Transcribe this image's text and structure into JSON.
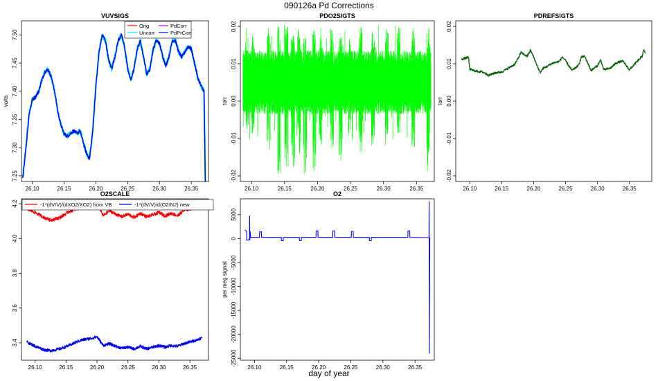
{
  "figure": {
    "title": "090126a   Pd Corrections",
    "xlabel": "day of year"
  },
  "chart_data": [
    {
      "id": "vuvsigs",
      "type": "line",
      "title": "VUVSIGS",
      "xlabel": "",
      "ylabel": "volts",
      "xlim": [
        26.083,
        26.377
      ],
      "ylim": [
        7.24,
        7.525
      ],
      "xticks": [
        26.1,
        26.15,
        26.2,
        26.25,
        26.3,
        26.35
      ],
      "xtick_labels": [
        "26.10",
        "26.15",
        "26.20",
        "26.25",
        "26.30",
        "26.35"
      ],
      "yticks": [
        7.25,
        7.3,
        7.35,
        7.4,
        7.45,
        7.5
      ],
      "ytick_labels": [
        "7.25",
        "7.30",
        "7.35",
        "7.40",
        "7.45",
        "7.50"
      ],
      "legend": {
        "position": "top-right",
        "entries": [
          {
            "label": "Orig",
            "color": "#ff0000"
          },
          {
            "label": "PdCorr",
            "color": "#cc00cc"
          },
          {
            "label": "Uncorr",
            "color": "#00e5ee"
          },
          {
            "label": "PdPrCorr",
            "color": "#0000ff"
          }
        ]
      },
      "series": [
        {
          "name": "Uncorr",
          "color": "#00e5ee",
          "width": 2.2,
          "noise": 0.004,
          "x": [
            26.085,
            26.09,
            26.095,
            26.1,
            26.105,
            26.11,
            26.115,
            26.12,
            26.125,
            26.13,
            26.135,
            26.14,
            26.145,
            26.15,
            26.155,
            26.16,
            26.165,
            26.17,
            26.175,
            26.18,
            26.185,
            26.19,
            26.195,
            26.2,
            26.205,
            26.21,
            26.215,
            26.22,
            26.225,
            26.23,
            26.235,
            26.24,
            26.245,
            26.25,
            26.255,
            26.26,
            26.265,
            26.27,
            26.275,
            26.28,
            26.285,
            26.29,
            26.295,
            26.3,
            26.305,
            26.31,
            26.315,
            26.32,
            26.325,
            26.33,
            26.335,
            26.34,
            26.345,
            26.35,
            26.355,
            26.36,
            26.365,
            26.37,
            26.372
          ],
          "y": [
            7.245,
            7.3,
            7.36,
            7.385,
            7.39,
            7.4,
            7.42,
            7.435,
            7.438,
            7.425,
            7.4,
            7.365,
            7.34,
            7.325,
            7.32,
            7.325,
            7.33,
            7.325,
            7.33,
            7.31,
            7.29,
            7.28,
            7.33,
            7.41,
            7.47,
            7.5,
            7.49,
            7.455,
            7.44,
            7.462,
            7.49,
            7.5,
            7.48,
            7.44,
            7.42,
            7.44,
            7.475,
            7.49,
            7.46,
            7.43,
            7.44,
            7.475,
            7.49,
            7.485,
            7.462,
            7.445,
            7.462,
            7.49,
            7.49,
            7.47,
            7.46,
            7.47,
            7.48,
            7.475,
            7.45,
            7.425,
            7.41,
            7.4,
            7.24
          ]
        },
        {
          "name": "PdPrCorr",
          "color": "#0000ff",
          "width": 1.4,
          "noise": 0.003,
          "x": [
            26.085,
            26.09,
            26.095,
            26.1,
            26.105,
            26.11,
            26.115,
            26.12,
            26.125,
            26.13,
            26.135,
            26.14,
            26.145,
            26.15,
            26.155,
            26.16,
            26.165,
            26.17,
            26.175,
            26.18,
            26.185,
            26.19,
            26.195,
            26.2,
            26.205,
            26.21,
            26.215,
            26.22,
            26.225,
            26.23,
            26.235,
            26.24,
            26.245,
            26.25,
            26.255,
            26.26,
            26.265,
            26.27,
            26.275,
            26.28,
            26.285,
            26.29,
            26.295,
            26.3,
            26.305,
            26.31,
            26.315,
            26.32,
            26.325,
            26.33,
            26.335,
            26.34,
            26.345,
            26.35,
            26.355,
            26.36,
            26.365,
            26.37,
            26.372
          ],
          "y": [
            7.245,
            7.3,
            7.36,
            7.385,
            7.39,
            7.4,
            7.42,
            7.435,
            7.438,
            7.425,
            7.4,
            7.365,
            7.34,
            7.325,
            7.32,
            7.325,
            7.33,
            7.325,
            7.33,
            7.31,
            7.29,
            7.28,
            7.33,
            7.41,
            7.47,
            7.5,
            7.49,
            7.455,
            7.44,
            7.462,
            7.49,
            7.5,
            7.48,
            7.44,
            7.42,
            7.44,
            7.475,
            7.49,
            7.46,
            7.43,
            7.44,
            7.475,
            7.49,
            7.485,
            7.462,
            7.445,
            7.462,
            7.49,
            7.49,
            7.47,
            7.46,
            7.47,
            7.48,
            7.475,
            7.45,
            7.425,
            7.41,
            7.4,
            7.24
          ]
        }
      ]
    },
    {
      "id": "pdo2sigts",
      "type": "line",
      "title": "PDO2SIGTS",
      "xlabel": "",
      "ylabel": "torr",
      "xlim": [
        26.083,
        26.377
      ],
      "ylim": [
        -0.0215,
        0.0215
      ],
      "xticks": [
        26.1,
        26.15,
        26.2,
        26.25,
        26.3,
        26.35
      ],
      "xtick_labels": [
        "26.10",
        "26.15",
        "26.20",
        "26.25",
        "26.30",
        "26.35"
      ],
      "yticks": [
        -0.02,
        -0.01,
        0.0,
        0.01,
        0.02
      ],
      "ytick_labels": [
        "-0.02",
        "-0.01",
        "0.00",
        "0.01",
        "0.02"
      ],
      "series": [
        {
          "name": "PDO2SIG",
          "color": "#00ff00",
          "center": 0.005,
          "half_range": 0.0085,
          "spikes": [
            {
              "x": 26.093,
              "hi": 0.02,
              "lo": -0.008
            },
            {
              "x": 26.102,
              "hi": 0.018,
              "lo": -0.009
            },
            {
              "x": 26.126,
              "hi": 0.02,
              "lo": -0.014
            },
            {
              "x": 26.142,
              "hi": 0.02,
              "lo": -0.021
            },
            {
              "x": 26.153,
              "hi": 0.02,
              "lo": -0.019
            },
            {
              "x": 26.163,
              "hi": 0.02,
              "lo": -0.018
            },
            {
              "x": 26.172,
              "hi": 0.02,
              "lo": -0.015
            },
            {
              "x": 26.181,
              "hi": 0.02,
              "lo": -0.02
            },
            {
              "x": 26.195,
              "hi": 0.019,
              "lo": -0.019
            },
            {
              "x": 26.205,
              "hi": 0.02,
              "lo": -0.012
            },
            {
              "x": 26.222,
              "hi": 0.02,
              "lo": -0.013
            },
            {
              "x": 26.235,
              "hi": 0.02,
              "lo": -0.016
            },
            {
              "x": 26.25,
              "hi": 0.017,
              "lo": -0.01
            },
            {
              "x": 26.265,
              "hi": 0.02,
              "lo": -0.014
            },
            {
              "x": 26.284,
              "hi": 0.019,
              "lo": -0.012
            },
            {
              "x": 26.305,
              "hi": 0.02,
              "lo": -0.013
            },
            {
              "x": 26.323,
              "hi": 0.02,
              "lo": -0.009
            },
            {
              "x": 26.345,
              "hi": 0.02,
              "lo": -0.013
            },
            {
              "x": 26.368,
              "hi": 0.02,
              "lo": -0.02
            }
          ]
        }
      ]
    },
    {
      "id": "pdrefsigts",
      "type": "line",
      "title": "PDREFSIGTS",
      "xlabel": "",
      "ylabel": "torr",
      "xlim": [
        26.078,
        26.385
      ],
      "ylim": [
        -0.0215,
        0.0215
      ],
      "xticks": [
        26.1,
        26.15,
        26.2,
        26.25,
        26.3,
        26.35
      ],
      "xtick_labels": [
        "26.10",
        "26.15",
        "26.20",
        "26.25",
        "26.30",
        "26.35"
      ],
      "yticks": [
        -0.02,
        -0.01,
        0.0,
        0.01,
        0.02
      ],
      "ytick_labels": [
        "-0.02",
        "-0.01",
        "0.00",
        "0.01",
        "0.02"
      ],
      "series": [
        {
          "name": "PDREFSIG",
          "color": "#006400",
          "width": 1.3,
          "noise": 0.0003,
          "x": [
            26.087,
            26.095,
            26.098,
            26.1,
            26.11,
            26.12,
            26.13,
            26.14,
            26.15,
            26.16,
            26.17,
            26.175,
            26.18,
            26.19,
            26.195,
            26.2,
            26.21,
            26.215,
            26.22,
            26.23,
            26.24,
            26.245,
            26.25,
            26.26,
            26.27,
            26.275,
            26.28,
            26.29,
            26.3,
            26.305,
            26.31,
            26.32,
            26.33,
            26.34,
            26.35,
            26.36,
            26.37,
            26.372,
            26.375
          ],
          "y": [
            0.0112,
            0.0116,
            0.0118,
            0.0085,
            0.008,
            0.0078,
            0.0069,
            0.0076,
            0.0078,
            0.0088,
            0.0098,
            0.0112,
            0.013,
            0.012,
            0.0136,
            0.0118,
            0.0076,
            0.0088,
            0.0092,
            0.0102,
            0.0106,
            0.0118,
            0.0108,
            0.0082,
            0.0095,
            0.0118,
            0.012,
            0.0082,
            0.0095,
            0.011,
            0.0084,
            0.0088,
            0.0103,
            0.0107,
            0.0084,
            0.0102,
            0.012,
            0.0138,
            0.0128
          ]
        }
      ]
    },
    {
      "id": "o2scale",
      "type": "line",
      "title": "O2SCALE",
      "xlabel": "",
      "ylabel": "",
      "xlim": [
        26.078,
        26.38
      ],
      "ylim": [
        3.3,
        4.228
      ],
      "xticks": [
        26.1,
        26.15,
        26.2,
        26.25,
        26.3,
        26.35
      ],
      "xtick_labels": [
        "26.10",
        "26.15",
        "26.20",
        "26.25",
        "26.30",
        "26.35"
      ],
      "yticks": [
        3.4,
        3.6,
        3.8,
        4.0,
        4.2
      ],
      "ytick_labels": [
        "3.4",
        "3.6",
        "3.8",
        "4.0",
        "4.2"
      ],
      "legend": {
        "position": "top",
        "entries": [
          {
            "label": "-1*(dV/V)/(dXO2/XO2) from VB",
            "color": "#ff0000"
          },
          {
            "label": "-1*(dV/V)/d(O2/N2) new",
            "color": "#0000ff"
          }
        ]
      },
      "series": [
        {
          "name": "from VB",
          "color": "#ff0000",
          "width": 1.4,
          "noise": 0.009,
          "x": [
            26.087,
            26.1,
            26.115,
            26.125,
            26.14,
            26.155,
            26.17,
            26.18,
            26.19,
            26.2,
            26.21,
            26.22,
            26.23,
            26.24,
            26.25,
            26.26,
            26.27,
            26.28,
            26.29,
            26.3,
            26.31,
            26.32,
            26.33,
            26.34,
            26.35,
            26.36,
            26.37
          ],
          "y": [
            4.17,
            4.15,
            4.12,
            4.105,
            4.12,
            4.155,
            4.175,
            4.175,
            4.18,
            4.205,
            4.13,
            4.16,
            4.14,
            4.125,
            4.14,
            4.12,
            4.145,
            4.125,
            4.135,
            4.15,
            4.13,
            4.145,
            4.13,
            4.16,
            4.17,
            4.18,
            4.19
          ]
        },
        {
          "name": "new",
          "color": "#0000ff",
          "width": 1.4,
          "noise": 0.008,
          "x": [
            26.087,
            26.1,
            26.115,
            26.125,
            26.14,
            26.155,
            26.17,
            26.18,
            26.19,
            26.2,
            26.21,
            26.22,
            26.23,
            26.24,
            26.25,
            26.26,
            26.27,
            26.28,
            26.29,
            26.3,
            26.31,
            26.32,
            26.33,
            26.34,
            26.35,
            26.36,
            26.37
          ],
          "y": [
            3.405,
            3.38,
            3.36,
            3.355,
            3.365,
            3.385,
            3.41,
            3.42,
            3.425,
            3.435,
            3.385,
            3.395,
            3.38,
            3.37,
            3.375,
            3.365,
            3.38,
            3.365,
            3.375,
            3.385,
            3.375,
            3.385,
            3.38,
            3.395,
            3.405,
            3.415,
            3.43
          ]
        }
      ]
    },
    {
      "id": "o2",
      "type": "line",
      "title": "O2",
      "xlabel": "",
      "ylabel": "per meg signal",
      "xlim": [
        26.078,
        26.38
      ],
      "ylim": [
        -25400,
        8300
      ],
      "xticks": [
        26.1,
        26.15,
        26.2,
        26.25,
        26.3,
        26.35
      ],
      "xtick_labels": [
        "26.10",
        "26.15",
        "26.20",
        "26.25",
        "26.30",
        "26.35"
      ],
      "yticks": [
        -25000,
        -20000,
        -15000,
        -10000,
        -5000,
        0,
        5000
      ],
      "ytick_labels": [
        "-25000",
        "-20000",
        "-15000",
        "-10000",
        "-5000",
        "0",
        "5000"
      ],
      "series": [
        {
          "name": "O2",
          "color": "#0000ff",
          "width": 1.1,
          "baseline": 300,
          "x": [
            26.085,
            26.0878,
            26.088,
            26.0922,
            26.0925,
            26.0928,
            26.0933,
            26.094,
            26.0945,
            26.095,
            26.1078,
            26.108,
            26.1108,
            26.111,
            26.1418,
            26.142,
            26.1448,
            26.145,
            26.1698,
            26.17,
            26.1728,
            26.173,
            26.1958,
            26.196,
            26.1988,
            26.199,
            26.2218,
            26.222,
            26.2248,
            26.225,
            26.2508,
            26.251,
            26.2538,
            26.254,
            26.2788,
            26.279,
            26.2818,
            26.282,
            26.3388,
            26.339,
            26.3418,
            26.342,
            26.3718,
            26.372,
            26.3725,
            26.373,
            26.374
          ],
          "y": [
            1800,
            1500,
            -350,
            -200,
            4800,
            -350,
            1500,
            300,
            200,
            250,
            250,
            1400,
            1400,
            250,
            250,
            -450,
            -450,
            250,
            250,
            -450,
            -450,
            250,
            250,
            1600,
            1600,
            250,
            250,
            1600,
            1600,
            250,
            250,
            1500,
            1500,
            250,
            250,
            -450,
            -450,
            250,
            250,
            1600,
            1600,
            250,
            200,
            7800,
            -24000,
            100,
            50
          ]
        }
      ]
    }
  ]
}
